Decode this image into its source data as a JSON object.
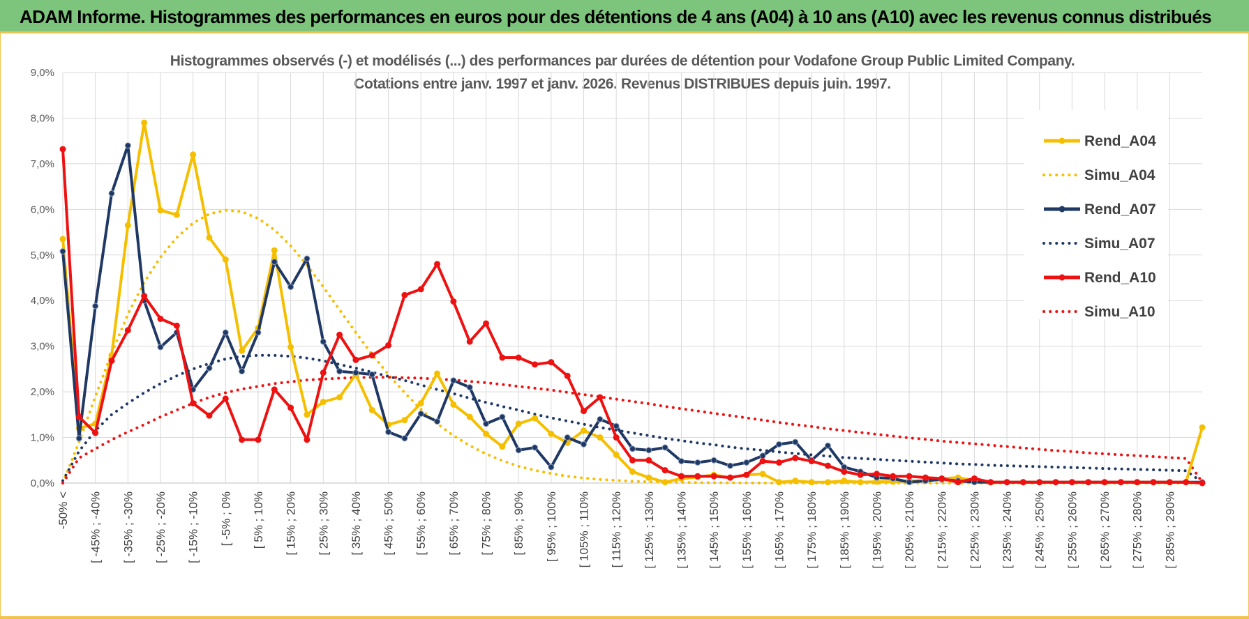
{
  "header": {
    "title": "ADAM Informe. Histogrammes des performances en euros pour des détentions de 4 ans (A04) à 10 ans (A10) avec les revenus connus distribués"
  },
  "chart_data": {
    "type": "line",
    "title_line1": "Histogrammes observés (-) et modélisés (...) des performances par durées de détention pour Vodafone Group Public Limited Company.",
    "title_line2": "Cotations entre janv. 1997 et janv. 2026. Revenus DISTRIBUES depuis juin. 1997.",
    "ylim": [
      0,
      9
    ],
    "yticks": [
      "0,0%",
      "1,0%",
      "2,0%",
      "3,0%",
      "4,0%",
      "5,0%",
      "6,0%",
      "7,0%",
      "8,0%",
      "9,0%"
    ],
    "x_labels": [
      "-50% <",
      "[ -45% ; -40%",
      "[ -35% ; -30%",
      "[ -25% ; -20%",
      "[ -15% ; -10%",
      "[ -5% ; 0%",
      "[ 5% ; 10%",
      "[ 15% ; 20%",
      "[ 25% ; 30%",
      "[ 35% ; 40%",
      "[ 45% ; 50%",
      "[ 55% ; 60%",
      "[ 65% ; 70%",
      "[ 75% ; 80%",
      "[ 85% ; 90%",
      "[ 95% ; 100%",
      "[ 105% ; 110%",
      "[ 115% ; 120%",
      "[ 125% ; 130%",
      "[ 135% ; 140%",
      "[ 145% ; 150%",
      "[ 155% ; 160%",
      "[ 165% ; 170%",
      "[ 175% ; 180%",
      "[ 185% ; 190%",
      "[ 195% ; 200%",
      "[ 205% ; 210%",
      "[ 215% ; 220%",
      "[ 225% ; 230%",
      "[ 235% ; 240%",
      "[ 245% ; 250%",
      "[ 255% ; 260%",
      "[ 265% ; 270%",
      "[ 275% ; 280%",
      "[ 285% ; 290%"
    ],
    "n_points": 71,
    "series": [
      {
        "name": "Rend_A04",
        "color": "#f5bf00",
        "style": "solid",
        "values": [
          5.35,
          1.2,
          1.3,
          2.8,
          5.65,
          7.9,
          5.98,
          5.88,
          7.2,
          5.38,
          4.9,
          2.9,
          3.4,
          5.1,
          2.98,
          1.5,
          1.78,
          1.88,
          2.38,
          1.6,
          1.28,
          1.38,
          1.75,
          2.4,
          1.72,
          1.45,
          1.08,
          0.8,
          1.3,
          1.42,
          1.08,
          0.88,
          1.15,
          1.0,
          0.62,
          0.25,
          0.12,
          0.02,
          0.1,
          0.13,
          0.18,
          0.12,
          0.18,
          0.2,
          0.02,
          0.05,
          0.02,
          0.02,
          0.05,
          0.02,
          0.03,
          0.03,
          0.05,
          0.05,
          0.1,
          0.12,
          0.05,
          0.02,
          0.02,
          0.02,
          0.02,
          0.02,
          0.02,
          0.02,
          0.02,
          0.02,
          0.02,
          0.02,
          0.02,
          0.02,
          1.22
        ]
      },
      {
        "name": "Simu_A04",
        "color": "#f5bf00",
        "style": "dotted",
        "values": [
          0.0,
          0.9,
          1.9,
          2.85,
          3.7,
          4.4,
          4.95,
          5.38,
          5.7,
          5.9,
          5.98,
          5.95,
          5.8,
          5.55,
          5.2,
          4.78,
          4.3,
          3.8,
          3.3,
          2.82,
          2.38,
          1.98,
          1.62,
          1.3,
          1.04,
          0.82,
          0.64,
          0.49,
          0.37,
          0.28,
          0.21,
          0.15,
          0.11,
          0.08,
          0.06,
          0.04,
          0.03,
          0.02,
          0.015,
          0.01,
          0.008,
          0.006,
          0.004,
          0.003,
          0.002,
          0.002,
          0.001,
          0.001,
          0.001,
          0.001,
          0.0,
          0.0,
          0.0,
          0.0,
          0.0,
          0.0,
          0.0,
          0.0,
          0.0,
          0.0,
          0.0,
          0.0,
          0.0,
          0.0,
          0.0,
          0.0,
          0.0,
          0.0,
          0.0,
          0.0,
          0.0
        ]
      },
      {
        "name": "Rend_A07",
        "color": "#1f3864",
        "style": "solid",
        "values": [
          5.08,
          0.98,
          3.88,
          6.35,
          7.4,
          4.0,
          2.98,
          3.3,
          2.05,
          2.52,
          3.3,
          2.45,
          3.3,
          4.85,
          4.3,
          4.92,
          3.1,
          2.45,
          2.42,
          2.38,
          1.12,
          0.98,
          1.52,
          1.35,
          2.25,
          2.1,
          1.3,
          1.45,
          0.72,
          0.78,
          0.35,
          1.0,
          0.85,
          1.4,
          1.25,
          0.75,
          0.72,
          0.78,
          0.48,
          0.45,
          0.5,
          0.38,
          0.45,
          0.6,
          0.85,
          0.9,
          0.5,
          0.82,
          0.35,
          0.25,
          0.12,
          0.1,
          0.02,
          0.05,
          0.08,
          0.05,
          0.02,
          0.02,
          0.02,
          0.02,
          0.02,
          0.02,
          0.02,
          0.02,
          0.02,
          0.02,
          0.02,
          0.02,
          0.02,
          0.02,
          0.02
        ]
      },
      {
        "name": "Simu_A07",
        "color": "#1f3864",
        "style": "dotted",
        "values": [
          0.05,
          0.7,
          1.15,
          1.5,
          1.75,
          1.98,
          2.18,
          2.35,
          2.5,
          2.62,
          2.72,
          2.78,
          2.8,
          2.8,
          2.78,
          2.74,
          2.68,
          2.6,
          2.52,
          2.43,
          2.34,
          2.25,
          2.15,
          2.05,
          1.96,
          1.86,
          1.77,
          1.68,
          1.6,
          1.51,
          1.43,
          1.36,
          1.29,
          1.22,
          1.16,
          1.1,
          1.04,
          0.98,
          0.93,
          0.88,
          0.84,
          0.79,
          0.75,
          0.72,
          0.68,
          0.65,
          0.62,
          0.59,
          0.56,
          0.54,
          0.52,
          0.5,
          0.48,
          0.46,
          0.44,
          0.42,
          0.41,
          0.39,
          0.38,
          0.37,
          0.36,
          0.35,
          0.34,
          0.33,
          0.32,
          0.31,
          0.3,
          0.29,
          0.28,
          0.27,
          0.02
        ]
      },
      {
        "name": "Rend_A10",
        "color": "#ee1111",
        "style": "solid",
        "values": [
          7.32,
          1.45,
          1.1,
          2.68,
          3.35,
          4.1,
          3.6,
          3.45,
          1.75,
          1.48,
          1.85,
          0.95,
          0.95,
          2.05,
          1.65,
          0.95,
          2.42,
          3.25,
          2.7,
          2.8,
          3.02,
          4.12,
          4.25,
          4.8,
          3.98,
          3.1,
          3.5,
          2.75,
          2.75,
          2.6,
          2.65,
          2.35,
          1.58,
          1.88,
          1.0,
          0.5,
          0.5,
          0.28,
          0.15,
          0.15,
          0.15,
          0.12,
          0.18,
          0.48,
          0.45,
          0.55,
          0.48,
          0.38,
          0.25,
          0.18,
          0.2,
          0.15,
          0.15,
          0.12,
          0.1,
          0.02,
          0.1,
          0.02,
          0.02,
          0.02,
          0.02,
          0.02,
          0.02,
          0.02,
          0.02,
          0.02,
          0.02,
          0.02,
          0.02,
          0.02,
          0.0
        ]
      },
      {
        "name": "Simu_A10",
        "color": "#ee1111",
        "style": "dotted",
        "values": [
          0.0,
          0.55,
          0.75,
          0.95,
          1.12,
          1.28,
          1.45,
          1.6,
          1.75,
          1.88,
          1.98,
          2.06,
          2.12,
          2.18,
          2.22,
          2.26,
          2.28,
          2.3,
          2.31,
          2.32,
          2.32,
          2.31,
          2.3,
          2.28,
          2.26,
          2.23,
          2.2,
          2.16,
          2.12,
          2.08,
          2.04,
          1.99,
          1.94,
          1.89,
          1.84,
          1.79,
          1.74,
          1.68,
          1.63,
          1.58,
          1.53,
          1.48,
          1.43,
          1.38,
          1.33,
          1.28,
          1.24,
          1.19,
          1.15,
          1.11,
          1.07,
          1.03,
          0.99,
          0.96,
          0.92,
          0.89,
          0.86,
          0.83,
          0.8,
          0.77,
          0.74,
          0.71,
          0.69,
          0.66,
          0.64,
          0.62,
          0.6,
          0.58,
          0.56,
          0.54,
          0.02
        ]
      }
    ],
    "legend": [
      "Rend_A04",
      "Simu_A04",
      "Rend_A07",
      "Simu_A07",
      "Rend_A10",
      "Simu_A10"
    ]
  }
}
